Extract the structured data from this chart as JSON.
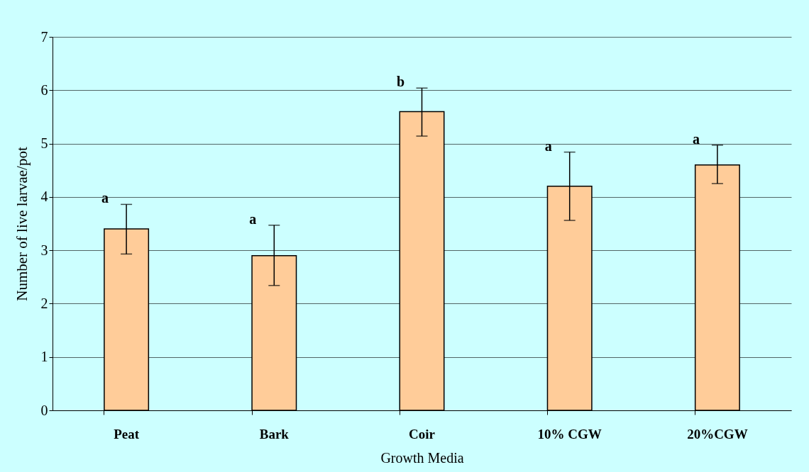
{
  "chart_data": {
    "type": "bar",
    "xlabel": "Growth Media",
    "ylabel": "Number of live larvae/pot",
    "categories": [
      "Peat",
      "Bark",
      "Coir",
      "10% CGW",
      "20%CGW"
    ],
    "values": [
      3.4,
      2.9,
      5.6,
      4.2,
      4.6
    ],
    "color": "#ffcc99",
    "errors": [
      [
        2.93,
        3.86
      ],
      [
        2.34,
        3.47
      ],
      [
        5.14,
        6.04
      ],
      [
        3.56,
        4.84
      ],
      [
        4.25,
        4.97
      ]
    ],
    "ylim": [
      0,
      7
    ],
    "yticks": [
      0,
      1,
      2,
      3,
      4,
      5,
      6,
      7
    ],
    "grid": "y",
    "annotations": [
      {
        "text": "a",
        "x": "Peat",
        "y": 3.86
      },
      {
        "text": "a",
        "x": "Bark",
        "y": 3.47
      },
      {
        "text": "b",
        "x": "Coir",
        "y": 6.04
      },
      {
        "text": "a",
        "x": "10% CGW",
        "y": 4.84
      },
      {
        "text": "a",
        "x": "20%CGW",
        "y": 4.97
      }
    ]
  }
}
